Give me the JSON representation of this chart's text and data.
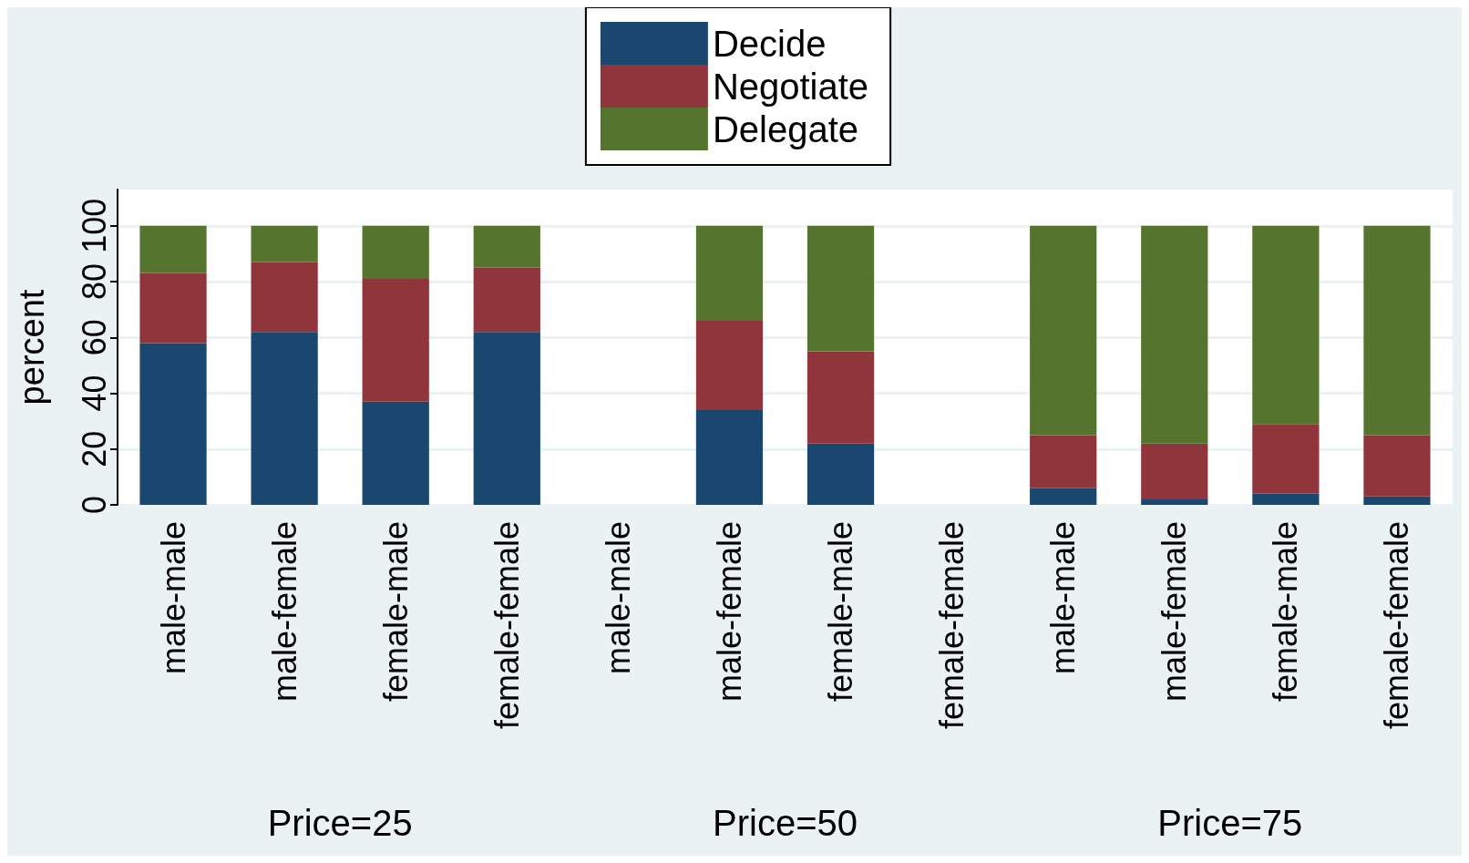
{
  "chart_data": {
    "type": "bar",
    "stacked": true,
    "ylabel": "percent",
    "categories": [
      "male-male",
      "male-female",
      "female-male",
      "female-female",
      "male-male",
      "male-female",
      "female-male",
      "female-female",
      "male-male",
      "male-female",
      "female-male",
      "female-female"
    ],
    "series": [
      {
        "name": "Decide",
        "color": "#1a476f",
        "values": [
          58,
          62,
          37,
          62,
          null,
          34,
          22,
          null,
          6,
          2,
          4,
          3
        ]
      },
      {
        "name": "Negotiate",
        "color": "#90353b",
        "values": [
          25,
          25,
          44,
          23,
          null,
          32,
          33,
          null,
          19,
          20,
          25,
          22
        ]
      },
      {
        "name": "Delegate",
        "color": "#55752f",
        "values": [
          17,
          13,
          19,
          15,
          null,
          34,
          45,
          null,
          75,
          78,
          71,
          75
        ]
      }
    ],
    "ylim": [
      0,
      113
    ],
    "yticks": [
      0,
      20,
      40,
      60,
      80,
      100
    ],
    "grid": "y",
    "legend": "top",
    "annotations": [
      "Price=25",
      "Price=50",
      "Price=75"
    ]
  }
}
